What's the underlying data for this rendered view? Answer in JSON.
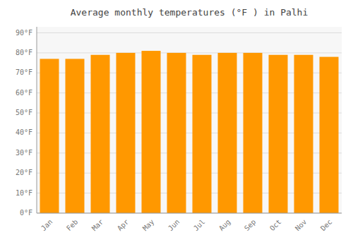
{
  "chart_data": {
    "type": "bar",
    "title": "Average monthly temperatures (°F ) in Palhi",
    "categories": [
      "Jan",
      "Feb",
      "Mar",
      "Apr",
      "May",
      "Jun",
      "Jul",
      "Aug",
      "Sep",
      "Oct",
      "Nov",
      "Dec"
    ],
    "values": [
      77,
      77,
      79,
      80,
      81,
      80,
      79,
      80,
      80,
      79,
      79,
      78
    ],
    "color": "#FF9800",
    "ylim": [
      0,
      93
    ],
    "yticks": [
      {
        "value": 0,
        "label": "0°F"
      },
      {
        "value": 10,
        "label": "10°F"
      },
      {
        "value": 20,
        "label": "20°F"
      },
      {
        "value": 30,
        "label": "30°F"
      },
      {
        "value": 40,
        "label": "40°F"
      },
      {
        "value": 50,
        "label": "50°F"
      },
      {
        "value": 60,
        "label": "60°F"
      },
      {
        "value": 70,
        "label": "70°F"
      },
      {
        "value": 80,
        "label": "80°F"
      },
      {
        "value": 90,
        "label": "90°F"
      }
    ],
    "grid": true
  }
}
